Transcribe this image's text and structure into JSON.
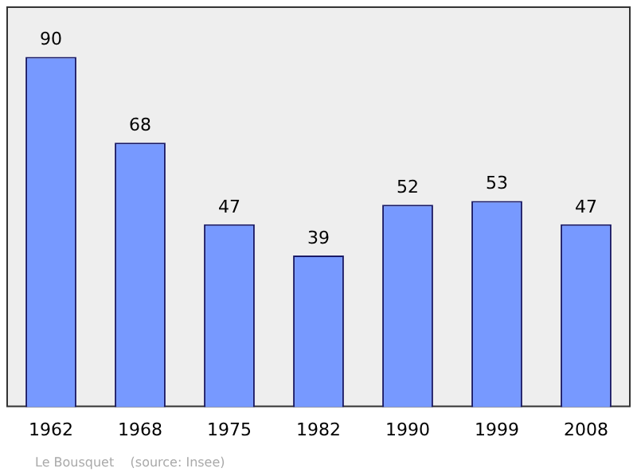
{
  "chart_data": {
    "type": "bar",
    "categories": [
      "1962",
      "1968",
      "1975",
      "1982",
      "1990",
      "1999",
      "2008"
    ],
    "values": [
      90,
      68,
      47,
      39,
      52,
      53,
      47
    ],
    "color": "#7799ff",
    "ylim": [
      0,
      103
    ],
    "data_labels": true,
    "grid": false,
    "legend": false,
    "annotations": [
      "Le Bousquet    (source: Insee)"
    ]
  }
}
